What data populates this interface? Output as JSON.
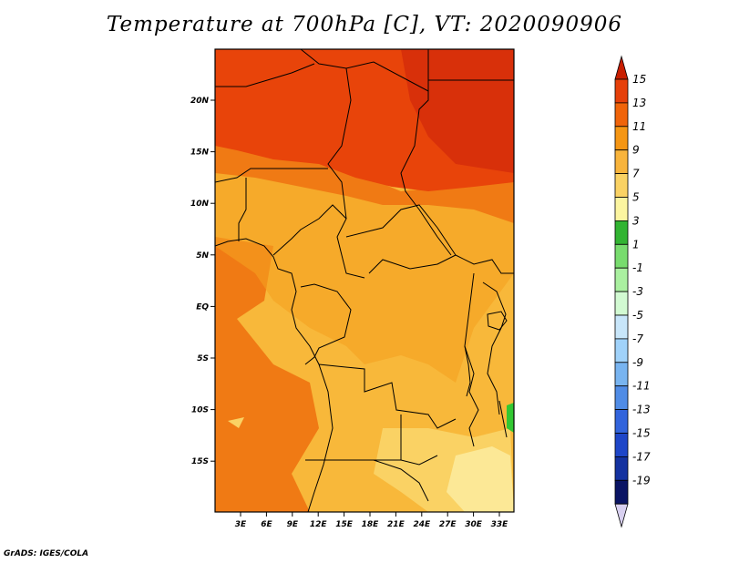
{
  "title": "Temperature at 700hPa [C], VT: 2020090906",
  "credit": "GrADS: IGES/COLA",
  "map": {
    "lat_labels": [
      "20N",
      "15N",
      "10N",
      "5N",
      "EQ",
      "5S",
      "10S",
      "15S"
    ],
    "lon_labels": [
      "3E",
      "6E",
      "9E",
      "12E",
      "15E",
      "18E",
      "21E",
      "24E",
      "27E",
      "30E",
      "33E"
    ]
  },
  "colorbar": {
    "levels": [
      "15",
      "13",
      "11",
      "9",
      "7",
      "5",
      "3",
      "1",
      "-1",
      "-3",
      "-5",
      "-7",
      "-9",
      "-11",
      "-13",
      "-15",
      "-17",
      "-19"
    ],
    "colors": [
      "#c81e00",
      "#e6400a",
      "#f0640a",
      "#f59614",
      "#f8b43c",
      "#fad264",
      "#fcf5a0",
      "#32b432",
      "#78dc6e",
      "#aaf0a0",
      "#d2fad2",
      "#c8e6fa",
      "#a0d2fa",
      "#78b4f0",
      "#508ce6",
      "#3264dc",
      "#1e46c8",
      "#1432a0",
      "#0a1464",
      "#d8d0f0"
    ]
  },
  "palette": {
    "hot": "#e8440a",
    "warm": "#f07a14",
    "mid": "#f5a020",
    "mild": "#f8b83a",
    "cool": "#fad264",
    "pale": "#fce896",
    "green": "#32c832"
  }
}
